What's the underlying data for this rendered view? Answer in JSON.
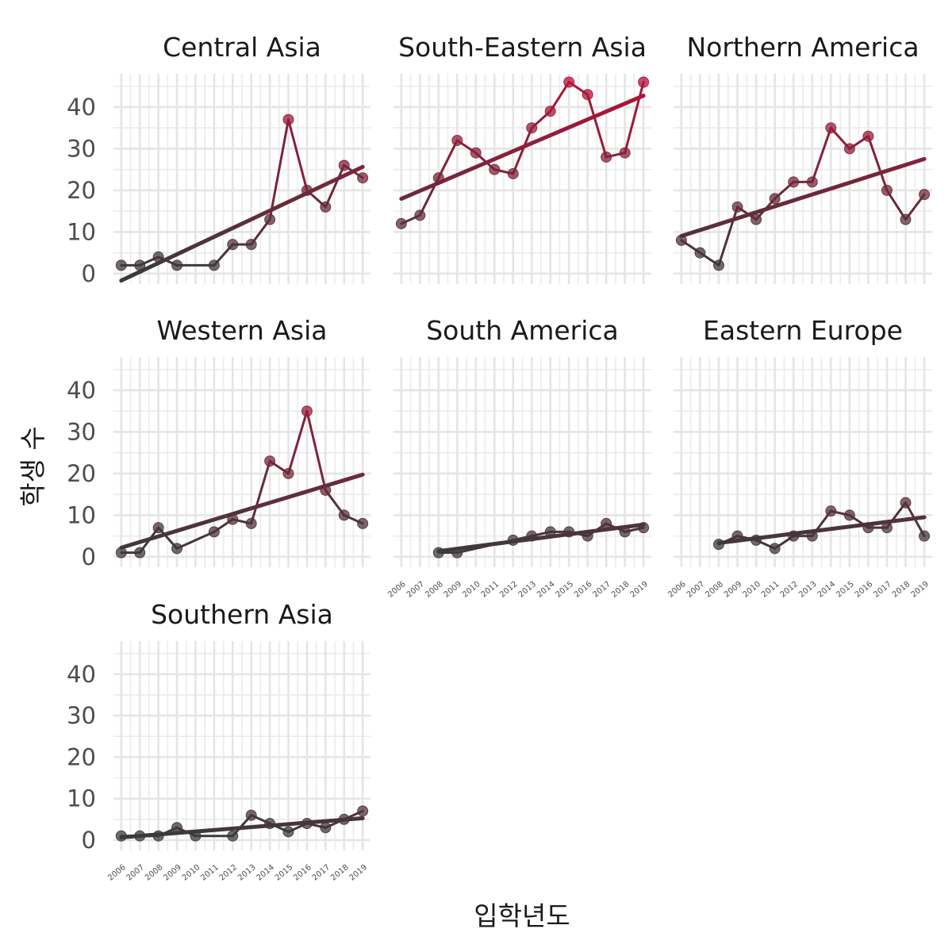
{
  "chart_data": {
    "type": "line",
    "xlabel": "입학년도",
    "ylabel": "학생 수",
    "x_tick_labels": [
      "2006",
      "2007",
      "2008",
      "2009",
      "2010",
      "2011",
      "2012",
      "2013",
      "2014",
      "2015",
      "2016",
      "2017",
      "2018",
      "2019"
    ],
    "y_ticks": [
      0,
      10,
      20,
      30,
      40
    ],
    "ylim": [
      -2.5,
      48
    ],
    "grid": true,
    "trend_line": "linear fit per panel",
    "color_scale": {
      "low": "#3a3a3a",
      "high": "#b3123a"
    },
    "panels": [
      {
        "title": "Central Asia",
        "points": [
          [
            2006,
            2
          ],
          [
            2007,
            2
          ],
          [
            2008,
            4
          ],
          [
            2009,
            2
          ],
          [
            2011,
            2
          ],
          [
            2012,
            7
          ],
          [
            2013,
            7
          ],
          [
            2014,
            13
          ],
          [
            2015,
            37
          ],
          [
            2016,
            20
          ],
          [
            2017,
            16
          ],
          [
            2018,
            26
          ],
          [
            2019,
            23
          ]
        ]
      },
      {
        "title": "South-Eastern Asia",
        "points": [
          [
            2006,
            12
          ],
          [
            2007,
            14
          ],
          [
            2008,
            23
          ],
          [
            2009,
            32
          ],
          [
            2010,
            29
          ],
          [
            2011,
            25
          ],
          [
            2012,
            24
          ],
          [
            2013,
            35
          ],
          [
            2014,
            39
          ],
          [
            2015,
            46
          ],
          [
            2016,
            43
          ],
          [
            2017,
            28
          ],
          [
            2018,
            29
          ],
          [
            2019,
            46
          ]
        ]
      },
      {
        "title": "Northern America",
        "points": [
          [
            2006,
            8
          ],
          [
            2007,
            5
          ],
          [
            2008,
            2
          ],
          [
            2009,
            16
          ],
          [
            2010,
            13
          ],
          [
            2011,
            18
          ],
          [
            2012,
            22
          ],
          [
            2013,
            22
          ],
          [
            2014,
            35
          ],
          [
            2015,
            30
          ],
          [
            2016,
            33
          ],
          [
            2017,
            20
          ],
          [
            2018,
            13
          ],
          [
            2019,
            19
          ]
        ]
      },
      {
        "title": "Western Asia",
        "points": [
          [
            2006,
            1
          ],
          [
            2007,
            1
          ],
          [
            2008,
            7
          ],
          [
            2009,
            2
          ],
          [
            2011,
            6
          ],
          [
            2012,
            9
          ],
          [
            2013,
            8
          ],
          [
            2014,
            23
          ],
          [
            2015,
            20
          ],
          [
            2016,
            35
          ],
          [
            2017,
            16
          ],
          [
            2018,
            10
          ],
          [
            2019,
            8
          ]
        ]
      },
      {
        "title": "South America",
        "points": [
          [
            2008,
            1
          ],
          [
            2009,
            1
          ],
          [
            2012,
            4
          ],
          [
            2013,
            5
          ],
          [
            2014,
            6
          ],
          [
            2015,
            6
          ],
          [
            2016,
            5
          ],
          [
            2017,
            8
          ],
          [
            2018,
            6
          ],
          [
            2019,
            7
          ]
        ]
      },
      {
        "title": "Eastern Europe",
        "points": [
          [
            2008,
            3
          ],
          [
            2009,
            5
          ],
          [
            2010,
            4
          ],
          [
            2011,
            2
          ],
          [
            2012,
            5
          ],
          [
            2013,
            5
          ],
          [
            2014,
            11
          ],
          [
            2015,
            10
          ],
          [
            2016,
            7
          ],
          [
            2017,
            7
          ],
          [
            2018,
            13
          ],
          [
            2019,
            5
          ]
        ]
      },
      {
        "title": "Southern Asia",
        "points": [
          [
            2006,
            1
          ],
          [
            2007,
            1
          ],
          [
            2008,
            1
          ],
          [
            2009,
            3
          ],
          [
            2010,
            1
          ],
          [
            2012,
            1
          ],
          [
            2013,
            6
          ],
          [
            2014,
            4
          ],
          [
            2015,
            2
          ],
          [
            2016,
            4
          ],
          [
            2017,
            3
          ],
          [
            2018,
            5
          ],
          [
            2019,
            7
          ]
        ]
      }
    ]
  }
}
